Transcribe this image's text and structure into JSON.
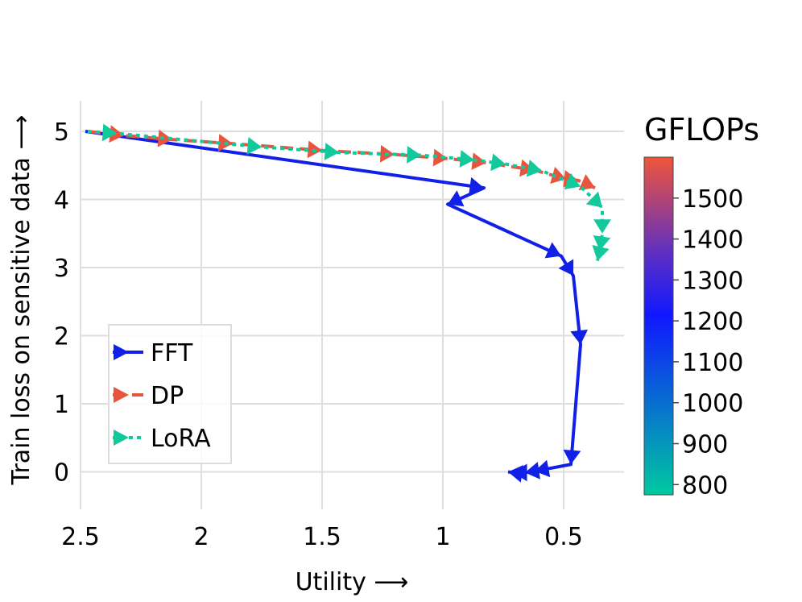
{
  "chart_data": {
    "type": "line",
    "xlabel": "Utility ⟶",
    "ylabel": "Train loss on sensitive data ⟶",
    "x_reversed": true,
    "xlim": [
      2.5,
      0.25
    ],
    "ylim": [
      -0.55,
      5.45
    ],
    "xticks": [
      2.5,
      2,
      1.5,
      1,
      0.5
    ],
    "xtick_labels": [
      "2.5",
      "2",
      "1.5",
      "1",
      "0.5"
    ],
    "yticks": [
      0,
      1,
      2,
      3,
      4,
      5
    ],
    "ytick_labels": [
      "0",
      "1",
      "2",
      "3",
      "4",
      "5"
    ],
    "grid": true,
    "legend_position": "lower-left",
    "series": [
      {
        "name": "FFT",
        "color": "#1020e8",
        "style": "solid",
        "points": [
          [
            2.48,
            5.0
          ],
          [
            0.83,
            4.17
          ],
          [
            0.98,
            3.93
          ],
          [
            0.51,
            3.17
          ],
          [
            0.46,
            2.88
          ],
          [
            0.43,
            1.87
          ],
          [
            0.47,
            0.11
          ],
          [
            0.62,
            0.01
          ],
          [
            0.66,
            -0.01
          ],
          [
            0.71,
            -0.01
          ],
          [
            0.73,
            -0.0
          ]
        ]
      },
      {
        "name": "DP",
        "color": "#e8553f",
        "style": "dashed",
        "points": [
          [
            2.47,
            5.0
          ],
          [
            2.32,
            4.94
          ],
          [
            2.12,
            4.88
          ],
          [
            1.87,
            4.82
          ],
          [
            1.5,
            4.72
          ],
          [
            1.2,
            4.66
          ],
          [
            0.98,
            4.6
          ],
          [
            0.82,
            4.54
          ],
          [
            0.62,
            4.43
          ],
          [
            0.49,
            4.3
          ],
          [
            0.44,
            4.28
          ],
          [
            0.37,
            4.17
          ]
        ]
      },
      {
        "name": "LoRA",
        "color": "#13c99b",
        "style": "dotted",
        "points": [
          [
            2.47,
            5.0
          ],
          [
            2.35,
            4.97
          ],
          [
            1.75,
            4.77
          ],
          [
            1.43,
            4.69
          ],
          [
            1.09,
            4.65
          ],
          [
            0.87,
            4.58
          ],
          [
            0.74,
            4.52
          ],
          [
            0.59,
            4.42
          ],
          [
            0.43,
            4.19
          ],
          [
            0.34,
            3.88
          ],
          [
            0.34,
            3.5
          ],
          [
            0.35,
            3.25
          ],
          [
            0.36,
            3.1
          ]
        ]
      }
    ],
    "colorbar": {
      "title": "GFLOPs",
      "min": 775,
      "max": 1600,
      "ticks": [
        800,
        900,
        1000,
        1100,
        1200,
        1300,
        1400,
        1500
      ],
      "tick_labels": [
        "800",
        "900",
        "1000",
        "1100",
        "1200",
        "1300",
        "1400",
        "1500"
      ],
      "colorscale": [
        "#00c9a0",
        "#1018ff",
        "#e8553f"
      ]
    }
  }
}
